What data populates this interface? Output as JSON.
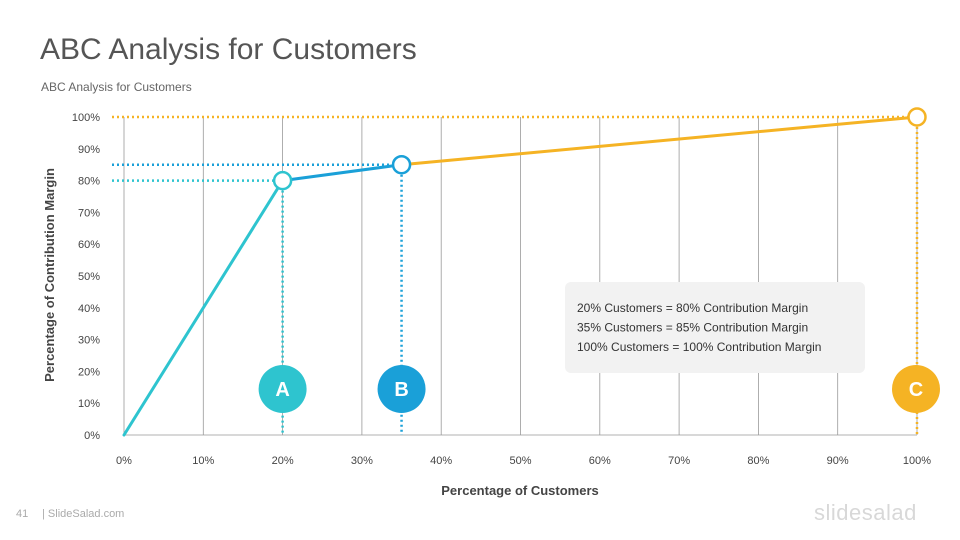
{
  "slide": {
    "title": "ABC Analysis for Customers",
    "subtitle": "ABC Analysis for Customers",
    "page_number": "41",
    "site": "| SlideSalad.com",
    "logo": "slidesalad"
  },
  "colors": {
    "a": "#2ec4cf",
    "b": "#1aa0d8",
    "c": "#f5b324",
    "grid": "#999999",
    "note_bg": "#f2f2f2"
  },
  "chart_data": {
    "type": "line",
    "xlabel": "Percentage of Customers",
    "ylabel": "Percentage of Contribution Margin",
    "xlim": [
      0,
      100
    ],
    "ylim": [
      0,
      100
    ],
    "x_ticks": [
      "0%",
      "10%",
      "20%",
      "30%",
      "40%",
      "50%",
      "60%",
      "70%",
      "80%",
      "90%",
      "100%"
    ],
    "y_ticks": [
      "0%",
      "10%",
      "20%",
      "30%",
      "40%",
      "50%",
      "60%",
      "70%",
      "80%",
      "90%",
      "100%"
    ],
    "grid": "vertical",
    "segments": [
      {
        "from": [
          0,
          0
        ],
        "to": [
          20,
          80
        ],
        "color_key": "a"
      },
      {
        "from": [
          20,
          80
        ],
        "to": [
          35,
          85
        ],
        "color_key": "b"
      },
      {
        "from": [
          35,
          85
        ],
        "to": [
          100,
          100
        ],
        "color_key": "c"
      }
    ],
    "points": [
      {
        "label": "A",
        "x": 20,
        "y": 80,
        "color_key": "a"
      },
      {
        "label": "B",
        "x": 35,
        "y": 85,
        "color_key": "b"
      },
      {
        "label": "C",
        "x": 100,
        "y": 100,
        "color_key": "c"
      }
    ],
    "annotations": [
      "20% Customers  = 80% Contribution  Margin",
      "35% Customers  = 85% Contribution  Margin",
      "100%  Customers  = 100% Contribution  Margin"
    ]
  }
}
